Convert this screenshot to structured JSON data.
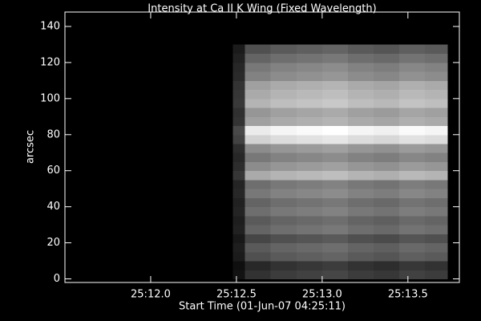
{
  "chart_data": {
    "type": "heatmap",
    "title": "Intensity at Ca II K Wing (Fixed Wavelength)",
    "xlabel": "Start Time (01-Jun-07 04:25:11)",
    "ylabel": "arcsec",
    "colormap": "gray",
    "vlim": [
      0,
      255
    ],
    "xlim": [
      11.5,
      13.8
    ],
    "ylim": [
      -2,
      148
    ],
    "xticks": [
      {
        "value": 12.0,
        "label": "25:12.0"
      },
      {
        "value": 12.5,
        "label": "25:12.5"
      },
      {
        "value": 13.0,
        "label": "25:13.0"
      },
      {
        "value": 13.5,
        "label": "25:13.5"
      }
    ],
    "yticks": [
      0,
      20,
      40,
      60,
      80,
      100,
      120,
      140
    ],
    "x_edges": [
      12.48,
      12.55,
      12.7,
      12.85,
      13.0,
      13.15,
      13.3,
      13.45,
      13.6,
      13.73
    ],
    "y_edges": [
      0,
      5,
      10,
      15,
      20,
      25,
      30,
      35,
      40,
      45,
      50,
      55,
      60,
      65,
      70,
      75,
      80,
      85,
      90,
      95,
      100,
      105,
      110,
      115,
      120,
      125,
      130
    ],
    "z": [
      [
        18,
        50,
        60,
        65,
        70,
        60,
        55,
        65,
        60
      ],
      [
        15,
        40,
        50,
        55,
        60,
        50,
        45,
        55,
        50
      ],
      [
        27,
        80,
        90,
        95,
        100,
        90,
        85,
        95,
        90
      ],
      [
        30,
        90,
        100,
        105,
        110,
        100,
        95,
        105,
        100
      ],
      [
        24,
        70,
        80,
        85,
        90,
        80,
        75,
        85,
        80
      ],
      [
        33,
        100,
        110,
        115,
        120,
        110,
        105,
        115,
        110
      ],
      [
        30,
        90,
        100,
        105,
        110,
        100,
        95,
        105,
        100
      ],
      [
        36,
        110,
        120,
        125,
        130,
        120,
        115,
        125,
        120
      ],
      [
        33,
        100,
        110,
        115,
        120,
        110,
        105,
        115,
        110
      ],
      [
        39,
        120,
        130,
        135,
        140,
        130,
        125,
        135,
        130
      ],
      [
        36,
        110,
        120,
        125,
        130,
        120,
        115,
        125,
        120
      ],
      [
        54,
        170,
        180,
        185,
        190,
        180,
        175,
        185,
        180
      ],
      [
        45,
        140,
        150,
        155,
        160,
        150,
        145,
        155,
        150
      ],
      [
        39,
        120,
        130,
        135,
        140,
        130,
        125,
        135,
        130
      ],
      [
        45,
        140,
        150,
        155,
        160,
        150,
        145,
        155,
        150
      ],
      [
        66,
        210,
        220,
        225,
        230,
        220,
        215,
        225,
        220
      ],
      [
        73,
        235,
        245,
        250,
        255,
        245,
        240,
        250,
        245
      ],
      [
        51,
        160,
        170,
        175,
        180,
        170,
        165,
        175,
        170
      ],
      [
        48,
        150,
        160,
        165,
        170,
        160,
        155,
        165,
        160
      ],
      [
        57,
        180,
        190,
        195,
        200,
        190,
        185,
        195,
        190
      ],
      [
        54,
        170,
        180,
        185,
        190,
        180,
        175,
        185,
        180
      ],
      [
        51,
        160,
        170,
        175,
        180,
        170,
        165,
        175,
        170
      ],
      [
        42,
        130,
        140,
        145,
        150,
        140,
        135,
        145,
        140
      ],
      [
        39,
        120,
        130,
        135,
        140,
        130,
        125,
        135,
        130
      ],
      [
        33,
        100,
        110,
        115,
        120,
        110,
        105,
        115,
        110
      ],
      [
        27,
        80,
        90,
        95,
        100,
        90,
        85,
        95,
        90
      ]
    ]
  }
}
